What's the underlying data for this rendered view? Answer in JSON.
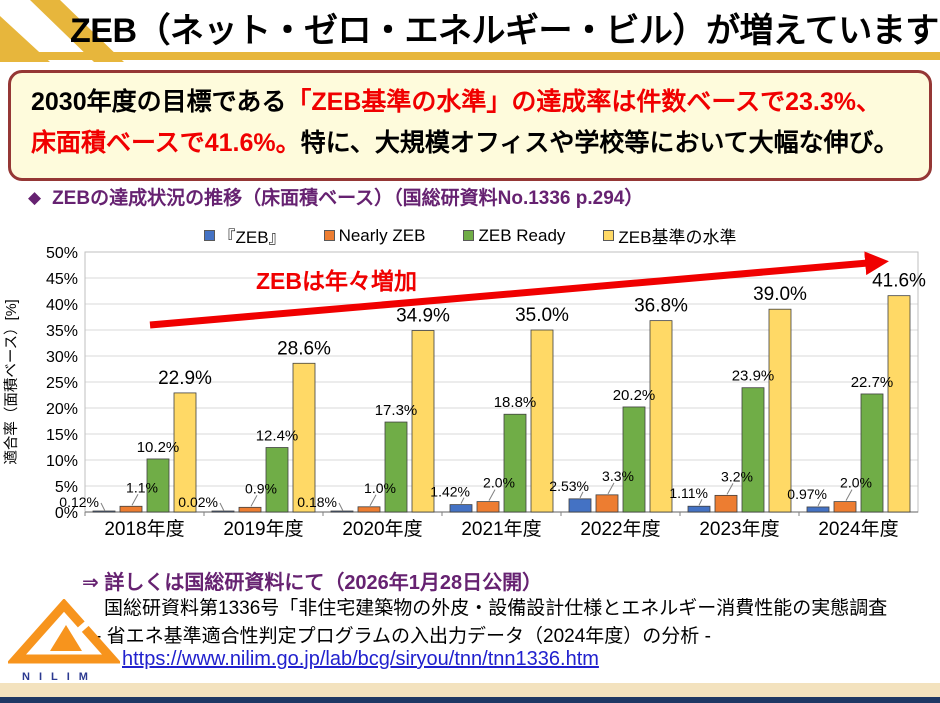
{
  "colors": {
    "gold": "#E7B63C",
    "callout_bg": "#FEFBDC",
    "callout_border": "#953735",
    "red": "#F00000",
    "purple": "#662271",
    "link": "#2121CE",
    "navy": "#1F3864",
    "cream": "#F3E2BE",
    "logo_orange": "#F7941D",
    "logo_blue": "#2B3990",
    "grid": "#D9D9D9",
    "axis": "#808080",
    "bar_outline": "#404040"
  },
  "slide": {
    "title": "ZEB（ネット・ゼロ・エネルギー・ビル）が増えています",
    "callout": {
      "black_1": "2030年度の目標である",
      "red_1": "「ZEB基準の水準」の達成率は件数ベースで23.3%、",
      "red_2": "床面積ベースで41.6%。",
      "black_2": "特に、大規模オフィスや学校等において大幅な伸び。"
    },
    "section_bullet": "◆",
    "section_heading": "ZEBの達成状況の推移（床面積ベース）（国総研資料No.1336 p.294）",
    "footer": {
      "notice": "⇒ 詳しくは国総研資料にて（2026年1月28日公開）",
      "source_line1": "国総研資料第1336号「非住宅建築物の外皮・設備設計仕様とエネルギー消費性能の実態調査",
      "source_line2": "- 省エネ基準適合性判定プログラムの入出力データ（2024年度）の分析 -",
      "url": "https://www.nilim.go.jp/lab/bcg/siryou/tnn/tnn1336.htm",
      "logo_text": "NILIM"
    }
  },
  "chart_data": {
    "type": "bar",
    "title": "",
    "categories": [
      "2018年度",
      "2019年度",
      "2020年度",
      "2021年度",
      "2022年度",
      "2023年度",
      "2024年度"
    ],
    "series": [
      {
        "name": "『ZEB』",
        "color": "#4472C4",
        "values": [
          0.12,
          0.02,
          0.18,
          1.42,
          2.53,
          1.11,
          0.97
        ],
        "labels": [
          "0.12%",
          "0.02%",
          "0.18%",
          "1.42%",
          "2.53%",
          "1.11%",
          "0.97%"
        ]
      },
      {
        "name": "Nearly ZEB",
        "color": "#ED7D31",
        "values": [
          1.1,
          0.9,
          1.0,
          2.0,
          3.3,
          3.2,
          2.0
        ],
        "labels": [
          "1.1%",
          "0.9%",
          "1.0%",
          "2.0%",
          "3.3%",
          "3.2%",
          "2.0%"
        ]
      },
      {
        "name": "ZEB Ready",
        "color": "#70AD47",
        "values": [
          10.2,
          12.4,
          17.3,
          18.8,
          20.2,
          23.9,
          22.7
        ],
        "labels": [
          "10.2%",
          "12.4%",
          "17.3%",
          "18.8%",
          "20.2%",
          "23.9%",
          "22.7%"
        ]
      },
      {
        "name": "ZEB基準の水準",
        "color": "#FFD966",
        "values": [
          22.9,
          28.6,
          34.9,
          35.0,
          36.8,
          39.0,
          41.6
        ],
        "labels": [
          "22.9%",
          "28.6%",
          "34.9%",
          "35.0%",
          "36.8%",
          "39.0%",
          "41.6%"
        ]
      }
    ],
    "xlabel": "",
    "ylabel": "適合率（面積ベース）[%]",
    "ylim": [
      0,
      50
    ],
    "ytick_step": 5,
    "ytick_suffix": "%",
    "grid": true,
    "legend_position": "top",
    "annotation": {
      "text": "ZEBは年々増加",
      "color": "#F00000"
    }
  }
}
